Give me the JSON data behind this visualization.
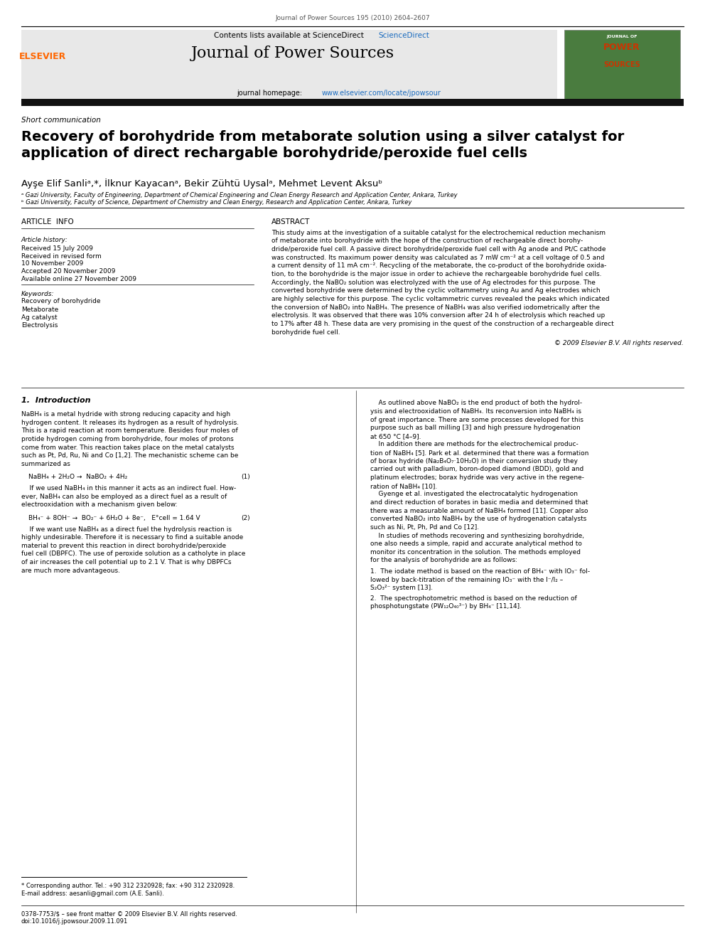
{
  "page_width": 9.92,
  "page_height": 13.23,
  "background_color": "#ffffff",
  "header_journal_ref": "Journal of Power Sources 195 (2010) 2604–2607",
  "header_bg_color": "#e8e8e8",
  "header_title": "Journal of Power Sources",
  "header_contents": "Contents lists available at ScienceDirect",
  "header_homepage": "journal homepage: www.elsevier.com/locate/jpowsour",
  "sciencedirect_color": "#1a6bbf",
  "homepage_color": "#1a6bbf",
  "section_label": "Short communication",
  "paper_title": "Recovery of borohydride from metaborate solution using a silver catalyst for\napplication of direct rechargable borohydride/peroxide fuel cells",
  "authors": "Ayşe Elif Sanliᵃ,*, İlknur Kayacanᵃ, Bekir Zühtü Uysalᵃ, Mehmet Levent Aksuᵇ",
  "affil_a": "ᵃ Gazi University, Faculty of Engineering, Department of Chemical Engineering and Clean Energy Research and Application Center, Ankara, Turkey",
  "affil_b": "ᵇ Gazi University, Faculty of Science, Department of Chemistry and Clean Energy, Research and Application Center, Ankara, Turkey",
  "article_info_header": "ARTICLE  INFO",
  "abstract_header": "ABSTRACT",
  "article_history_label": "Article history:",
  "received1": "Received 15 July 2009",
  "received2": "Received in revised form",
  "received2b": "10 November 2009",
  "accepted": "Accepted 20 November 2009",
  "available": "Available online 27 November 2009",
  "keywords_label": "Keywords:",
  "keywords": [
    "Recovery of borohydride",
    "Metaborate",
    "Ag catalyst",
    "Electrolysis"
  ],
  "abstract_text": "This study aims at the investigation of a suitable catalyst for the electrochemical reduction mechanism of metaborate into borohydride with the hope of the construction of rechargeable direct borohydride/peroxide fuel cell. A passive direct borohydride/peroxide fuel cell with Ag anode and Pt/C cathode was constructed. Its maximum power density was calculated as 7 mW cm⁻² at a cell voltage of 0.5 and a current density of 11 mA cm⁻². Recycling of the metaborate, the co-product of the borohydride oxidation, to the borohydride is the major issue in order to achieve the rechargeable borohydride fuel cells. Accordingly, the NaBO₂ solution was electrolyzed with the use of Ag electrodes for this purpose. The converted borohydride were determined by the cyclic voltammetry using Au and Ag electrodes which are highly selective for this purpose. The cyclic voltammetric curves revealed the peaks which indicated the conversion of NaBO₂ into NaBH₄. The presence of NaBH₄ was also verified iodometrically after the electrolysis. It was observed that there was 10% conversion after 24 h of electrolysis which reached up to 17% after 48 h. These data are very promising in the quest of the construction of a rechargeable direct borohydride fuel cell.",
  "copyright": "© 2009 Elsevier B.V. All rights reserved.",
  "intro_header": "1.  Introduction",
  "intro_col1": "NaBH₄ is a metal hydride with strong reducing capacity and high hydrogen content. It releases its hydrogen as a result of hydrolysis. This is a rapid reaction at room temperature. Besides four moles of protide hydrogen coming from borohydride, four moles of protons come from water. This reaction takes place on the metal catalysts such as Pt, Pd, Ru, Ni and Co [1,2]. The mechanistic scheme can be summarized as",
  "equation1": "NaBH₄ + 2H₂O →  NaBO₂ + 4H₂                                         (1)",
  "intro_col1b": "    If we used NaBH₄ in this manner it acts as an indirect fuel. However, NaBH₄ can also be employed as a direct fuel as a result of electrooxidation with a mechanism given below:",
  "equation2": "BH₄⁻ + 8OH⁻ →  BO₂⁻ + 6H₂O + 8e⁻,     E°cell = 1.64 V              (2)",
  "intro_col1c": "    If we want use NaBH₄ as a direct fuel the hydrolysis reaction is highly undesirable. Therefore it is necessary to find a suitable anode material to prevent this reaction in direct borohydride/peroxide fuel cell (DBPFC). The use of peroxide solution as a catholyte in place of air increases the cell potential up to 2.1 V. That is why DBPFCs are much more advantageous.",
  "intro_col2": "    As outlined above NaBO₂ is the end product of both the hydrolysis and electrooxidation of NaBH₄. Its reconversion into NaBH₄ is of great importance. There are some processes developed for this purpose such as ball milling [3] and high pressure hydrogenation at 650 °C [4–9].\n    In addition there are methods for the electrochemical production of NaBH₄ [5]. Park et al. determined that there was a formation of borax hydride (Na₂B₄O₇·10H₂O) in their conversion study they carried out with palladium, boron-doped diamond (BDD), gold and platinum electrodes; borax hydride was very active in the regeneration of NaBH₄ [10].\n    Gyenge et al. investigated the electrocatalytic hydrogenation and direct reduction of borates in basic media and determined that there was a measurable amount of NaBH₄ formed [11]. Copper also converted NaBO₂ into NaBH₄ by the use of hydrogenation catalysts such as Ni, Pt, Ph, Pd and Co [12].\n    In studies of methods recovering and synthesizing borohydride, one also needs a simple, rapid and accurate analytical method to monitor its concentration in the solution. The methods employed for the analysis of borohydride are as follows:",
  "list_item1": "1.  The iodate method is based on the reaction of BH₄⁻ with IO₃⁻ followed by back-titration of the remaining IO₃⁻ with the I⁻/I₂ – S₂O₃²⁻ system [13].",
  "list_item2": "2.  The spectrophotometric method is based on the reduction of phosphotungstate (PW₁₂O₄₀³⁻) by BH₄⁻ [11,14].",
  "footnote_star": "* Corresponding author. Tel.: +90 312 2320928; fax: +90 312 2320928.",
  "footnote_email": "E-mail address: aesanli@gmail.com (A.E. Sanli).",
  "footer_issn": "0378-7753/$ – see front matter © 2009 Elsevier B.V. All rights reserved.",
  "footer_doi": "doi:10.1016/j.jpowsour.2009.11.091",
  "divider_color": "#000000",
  "thick_divider_color": "#1a1a1a",
  "elsevier_orange": "#ff6600",
  "elsevier_text_color": "#ff6600"
}
